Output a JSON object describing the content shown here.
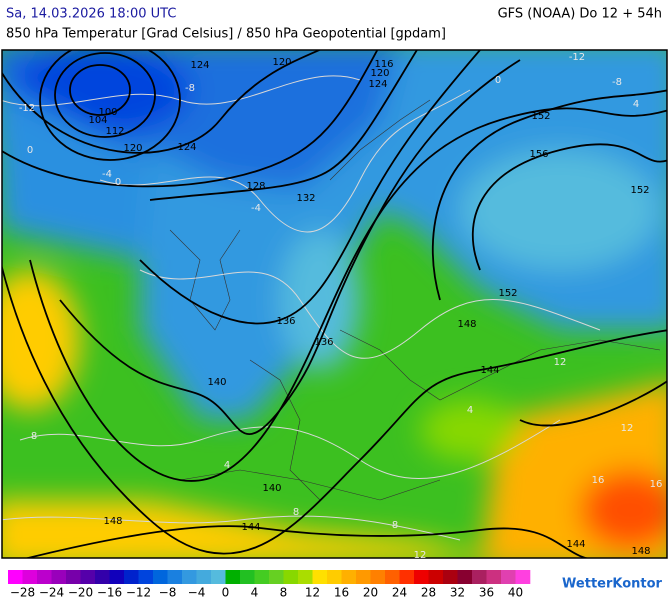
{
  "header": {
    "date": "Sa, 14.03.2026 18:00 UTC",
    "model": "GFS (NOAA) Do 12 + 54h",
    "subtitle": "850 hPa Temperatur [Grad Celsius] / 850 hPa Geopotential [gpdam]"
  },
  "map": {
    "geopotential_labels": [
      "124",
      "120",
      "116",
      "120",
      "124",
      "100",
      "104",
      "112",
      "120",
      "124",
      "128",
      "132",
      "136",
      "136",
      "140",
      "140",
      "144",
      "148",
      "152",
      "156",
      "152",
      "148",
      "144",
      "148",
      "144",
      "152"
    ],
    "temperature_labels": [
      "-12",
      "-8",
      "-12",
      "-8",
      "-4",
      "0",
      "-4",
      "0",
      "4",
      "8",
      "4",
      "8",
      "12",
      "16",
      "8",
      "12",
      "16",
      "4",
      "0",
      "12"
    ]
  },
  "colorbar": {
    "labels": [
      "−28",
      "−24",
      "−20",
      "−16",
      "−12",
      "−8",
      "−4",
      "0",
      "4",
      "8",
      "12",
      "16",
      "20",
      "24",
      "28",
      "32",
      "36",
      "40"
    ],
    "colors": [
      "#ff00ff",
      "#dd00dd",
      "#bb00cc",
      "#9900bb",
      "#7700aa",
      "#5500aa",
      "#3300aa",
      "#1100bb",
      "#0022cc",
      "#0044dd",
      "#0066dd",
      "#1a80e0",
      "#3399e0",
      "#44aadd",
      "#55bbdd",
      "#00b000",
      "#22c022",
      "#44cc22",
      "#66d022",
      "#88d800",
      "#aadd00",
      "#ffe000",
      "#ffcc00",
      "#ffb000",
      "#ff9900",
      "#ff8000",
      "#ff6000",
      "#ff3000",
      "#ee0000",
      "#cc0000",
      "#aa0010",
      "#880030",
      "#aa2060",
      "#cc3080",
      "#e040b0",
      "#ff40e0"
    ]
  },
  "logo": "WetterKontor"
}
